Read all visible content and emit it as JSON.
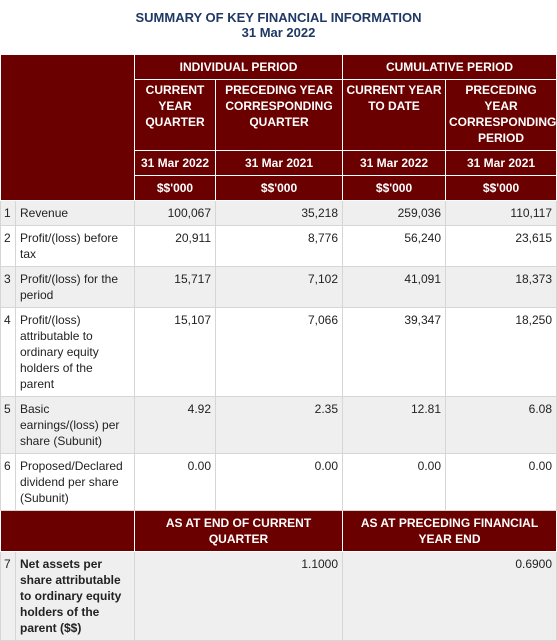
{
  "header": {
    "title": "SUMMARY OF KEY FINANCIAL INFORMATION",
    "date": "31 Mar 2022"
  },
  "groups": {
    "individual": "INDIVIDUAL PERIOD",
    "cumulative": "CUMULATIVE PERIOD"
  },
  "columns": [
    {
      "label": "CURRENT YEAR QUARTER",
      "date": "31 Mar 2022",
      "unit": "$$'000"
    },
    {
      "label": "PRECEDING YEAR CORRESPONDING QUARTER",
      "date": "31 Mar 2021",
      "unit": "$$'000"
    },
    {
      "label": "CURRENT YEAR TO DATE",
      "date": "31 Mar 2022",
      "unit": "$$'000"
    },
    {
      "label": "PRECEDING YEAR CORRESPONDING PERIOD",
      "date": "31 Mar 2021",
      "unit": "$$'000"
    }
  ],
  "rows": [
    {
      "no": "1",
      "label": "Revenue",
      "values": [
        "100,067",
        "35,218",
        "259,036",
        "110,117"
      ]
    },
    {
      "no": "2",
      "label": "Profit/(loss) before tax",
      "values": [
        "20,911",
        "8,776",
        "56,240",
        "23,615"
      ]
    },
    {
      "no": "3",
      "label": "Profit/(loss) for the period",
      "values": [
        "15,717",
        "7,102",
        "41,091",
        "18,373"
      ]
    },
    {
      "no": "4",
      "label": "Profit/(loss) attributable to ordinary equity holders of the parent",
      "values": [
        "15,107",
        "7,066",
        "39,347",
        "18,250"
      ]
    },
    {
      "no": "5",
      "label": "Basic earnings/(loss) per share (Subunit)",
      "values": [
        "4.92",
        "2.35",
        "12.81",
        "6.08"
      ]
    },
    {
      "no": "6",
      "label": "Proposed/Declared dividend per share (Subunit)",
      "values": [
        "0.00",
        "0.00",
        "0.00",
        "0.00"
      ]
    }
  ],
  "balance": {
    "left_header": "AS AT END OF CURRENT QUARTER",
    "right_header": "AS AT PRECEDING FINANCIAL YEAR END",
    "row": {
      "no": "7",
      "label": "Net assets per share attributable to ordinary equity holders of the parent ($$)",
      "current": "1.1000",
      "preceding": "0.6900"
    }
  }
}
